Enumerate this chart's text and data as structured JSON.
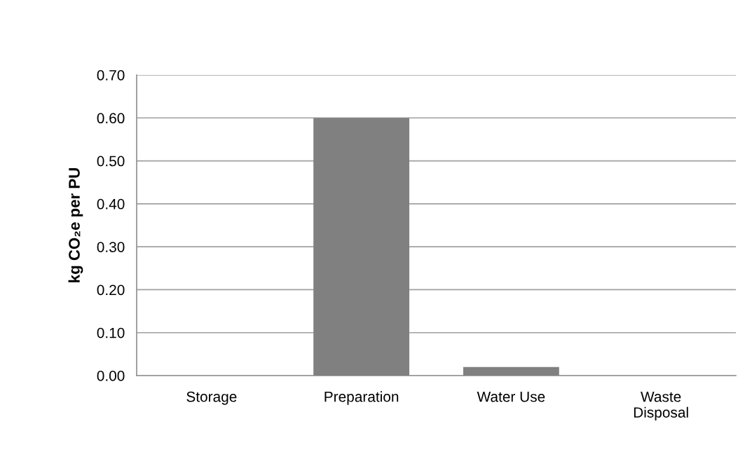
{
  "chart_data": {
    "type": "bar",
    "ylabel": "kg CO₂e per PU",
    "categories": [
      "Storage",
      "Preparation",
      "Water Use",
      "Waste\nDisposal"
    ],
    "values": [
      0,
      0.6,
      0.02,
      0
    ],
    "color": "#808080",
    "ylim": [
      0,
      0.7
    ],
    "yticks": [
      {
        "value": 0,
        "label": "0.00"
      },
      {
        "value": 0.1,
        "label": "0.10"
      },
      {
        "value": 0.2,
        "label": "0.20"
      },
      {
        "value": 0.3,
        "label": "0.30"
      },
      {
        "value": 0.4,
        "label": "0.40"
      },
      {
        "value": 0.5,
        "label": "0.50"
      },
      {
        "value": 0.6,
        "label": "0.60"
      },
      {
        "value": 0.7,
        "label": "0.70"
      }
    ],
    "grid": "y",
    "legend": false
  }
}
